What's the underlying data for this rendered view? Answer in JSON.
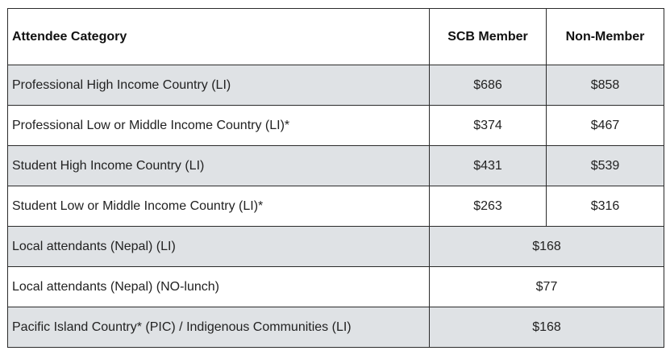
{
  "table": {
    "headers": {
      "category": "Attendee Category",
      "member": "SCB Member",
      "non_member": "Non-Member"
    },
    "rows": [
      {
        "category": "Professional High Income Country (LI)",
        "member": "$686",
        "non_member": "$858",
        "shaded": true
      },
      {
        "category": "Professional Low or Middle Income Country (LI)*",
        "member": "$374",
        "non_member": "$467",
        "shaded": false
      },
      {
        "category": "Student High Income Country (LI)",
        "member": "$431",
        "non_member": "$539",
        "shaded": true
      },
      {
        "category": "Student Low or Middle Income Country (LI)*",
        "member": "$263",
        "non_member": "$316",
        "shaded": false
      },
      {
        "category": "Local attendants (Nepal) (LI)",
        "price": "$168",
        "shaded": true
      },
      {
        "category": "Local attendants (Nepal) (NO-lunch)",
        "price": "$77",
        "shaded": false
      },
      {
        "category": "Pacific Island Country* (PIC) / Indigenous Communities (LI)",
        "price": "$168",
        "shaded": true
      }
    ],
    "colors": {
      "shaded_row": "#dfe2e5",
      "plain_row": "#ffffff",
      "border": "#2b2b2b"
    }
  }
}
